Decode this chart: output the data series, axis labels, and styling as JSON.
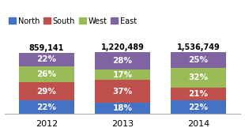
{
  "years": [
    "2012",
    "2013",
    "2014"
  ],
  "totals": [
    "859,141",
    "1,220,489",
    "1,536,749"
  ],
  "segments": {
    "North": [
      22,
      18,
      22
    ],
    "South": [
      29,
      37,
      21
    ],
    "West": [
      26,
      17,
      32
    ],
    "East": [
      22,
      28,
      25
    ]
  },
  "colors": {
    "North": "#4472C4",
    "South": "#C0504D",
    "West": "#9BBB59",
    "East": "#8064A2"
  },
  "bar_width": 0.72,
  "background_color": "#FFFFFF",
  "text_color_white": "#FFFFFF",
  "text_color_black": "#000000",
  "ylim": [
    0,
    135
  ],
  "total_fontsize": 7,
  "pct_fontsize": 7.5,
  "tick_fontsize": 8
}
